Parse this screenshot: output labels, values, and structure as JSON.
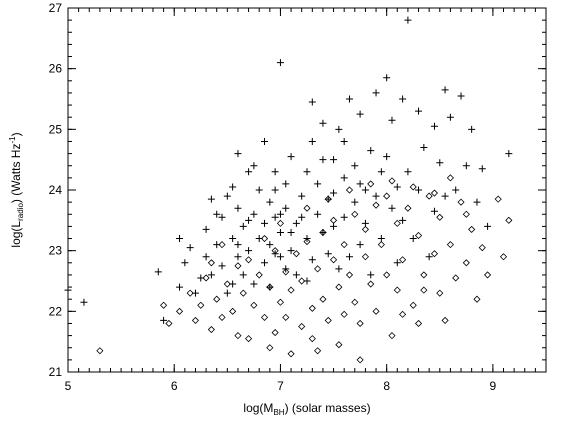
{
  "chart_data": {
    "type": "scatter",
    "title": "",
    "xlabel": {
      "prefix": "log(M",
      "sub": "BH",
      "suffix": ") (solar masses)"
    },
    "ylabel": {
      "prefix": "log(L",
      "sub": "radio",
      "mid": ") (Watts Hz",
      "sup": "-1",
      "suffix": ")"
    },
    "xlim": [
      5,
      9.5
    ],
    "ylim": [
      21,
      27
    ],
    "xticks": [
      "5",
      "6",
      "7",
      "8",
      "9"
    ],
    "yticks": [
      "21",
      "22",
      "23",
      "24",
      "25",
      "26",
      "27"
    ],
    "grid": false,
    "legend": "none",
    "series": [
      {
        "marker": "plus",
        "points": [
          [
            5.0,
            22.35
          ],
          [
            5.15,
            22.15
          ],
          [
            5.85,
            22.65
          ],
          [
            5.9,
            21.85
          ],
          [
            6.05,
            22.4
          ],
          [
            6.1,
            22.8
          ],
          [
            6.15,
            23.05
          ],
          [
            6.05,
            23.2
          ],
          [
            6.2,
            22.3
          ],
          [
            6.25,
            22.55
          ],
          [
            6.3,
            23.35
          ],
          [
            6.3,
            22.9
          ],
          [
            6.35,
            22.6
          ],
          [
            6.35,
            23.85
          ],
          [
            6.4,
            23.1
          ],
          [
            6.45,
            22.75
          ],
          [
            6.45,
            23.55
          ],
          [
            6.5,
            22.3
          ],
          [
            6.55,
            23.2
          ],
          [
            6.55,
            24.05
          ],
          [
            6.6,
            22.9
          ],
          [
            6.6,
            23.7
          ],
          [
            6.6,
            24.6
          ],
          [
            6.65,
            22.6
          ],
          [
            6.65,
            23.4
          ],
          [
            6.7,
            23.0
          ],
          [
            6.7,
            24.3
          ],
          [
            6.75,
            23.6
          ],
          [
            6.75,
            22.45
          ],
          [
            6.8,
            23.2
          ],
          [
            6.8,
            24.0
          ],
          [
            6.85,
            22.8
          ],
          [
            6.85,
            23.45
          ],
          [
            6.85,
            24.8
          ],
          [
            6.9,
            23.1
          ],
          [
            6.9,
            23.8
          ],
          [
            6.9,
            22.4
          ],
          [
            6.95,
            23.55
          ],
          [
            6.95,
            24.3
          ],
          [
            7.0,
            22.9
          ],
          [
            7.0,
            23.3
          ],
          [
            7.0,
            26.1
          ],
          [
            7.05,
            23.7
          ],
          [
            7.05,
            24.1
          ],
          [
            7.1,
            23.0
          ],
          [
            7.1,
            24.55
          ],
          [
            7.15,
            23.45
          ],
          [
            7.15,
            22.6
          ],
          [
            7.2,
            23.9
          ],
          [
            7.25,
            23.2
          ],
          [
            7.25,
            24.3
          ],
          [
            7.3,
            22.85
          ],
          [
            7.3,
            25.45
          ],
          [
            7.35,
            23.6
          ],
          [
            7.35,
            24.1
          ],
          [
            7.4,
            23.3
          ],
          [
            7.4,
            25.1
          ],
          [
            7.45,
            22.95
          ],
          [
            7.45,
            23.85
          ],
          [
            7.5,
            24.5
          ],
          [
            7.5,
            23.4
          ],
          [
            7.55,
            22.7
          ],
          [
            7.55,
            25.0
          ],
          [
            7.6,
            24.2
          ],
          [
            7.6,
            23.55
          ],
          [
            7.65,
            25.5
          ],
          [
            7.65,
            22.9
          ],
          [
            7.7,
            23.8
          ],
          [
            7.7,
            24.4
          ],
          [
            7.75,
            23.1
          ],
          [
            7.75,
            25.25
          ],
          [
            7.8,
            24.0
          ],
          [
            7.8,
            23.45
          ],
          [
            7.85,
            24.65
          ],
          [
            7.85,
            22.6
          ],
          [
            7.9,
            25.6
          ],
          [
            7.9,
            23.9
          ],
          [
            7.95,
            24.3
          ],
          [
            7.95,
            23.2
          ],
          [
            8.0,
            25.85
          ],
          [
            8.0,
            24.55
          ],
          [
            8.05,
            23.7
          ],
          [
            8.05,
            25.15
          ],
          [
            8.1,
            24.05
          ],
          [
            8.1,
            22.8
          ],
          [
            8.15,
            25.5
          ],
          [
            8.15,
            23.5
          ],
          [
            8.2,
            26.8
          ],
          [
            8.2,
            24.3
          ],
          [
            8.25,
            23.2
          ],
          [
            8.3,
            25.3
          ],
          [
            8.3,
            24.0
          ],
          [
            8.35,
            24.7
          ],
          [
            8.4,
            22.9
          ],
          [
            8.45,
            25.05
          ],
          [
            8.45,
            23.65
          ],
          [
            8.5,
            24.45
          ],
          [
            8.55,
            25.65
          ],
          [
            8.55,
            23.9
          ],
          [
            8.6,
            25.2
          ],
          [
            8.65,
            24.0
          ],
          [
            8.7,
            25.55
          ],
          [
            8.75,
            24.4
          ],
          [
            8.8,
            25.0
          ],
          [
            8.85,
            23.8
          ],
          [
            8.9,
            24.35
          ],
          [
            8.95,
            23.4
          ],
          [
            9.15,
            24.6
          ],
          [
            7.0,
            23.6
          ],
          [
            6.95,
            24.0
          ],
          [
            7.2,
            23.55
          ],
          [
            7.5,
            23.95
          ],
          [
            7.75,
            24.1
          ],
          [
            6.5,
            23.9
          ],
          [
            6.75,
            24.4
          ],
          [
            7.3,
            24.8
          ],
          [
            7.6,
            24.8
          ],
          [
            7.4,
            24.5
          ],
          [
            7.1,
            23.3
          ],
          [
            6.4,
            23.6
          ],
          [
            6.7,
            23.5
          ],
          [
            6.95,
            22.95
          ],
          [
            7.05,
            22.7
          ],
          [
            7.25,
            22.5
          ],
          [
            6.55,
            22.45
          ],
          [
            6.6,
            23.1
          ]
        ]
      },
      {
        "marker": "diamond",
        "points": [
          [
            5.3,
            21.35
          ],
          [
            5.9,
            22.1
          ],
          [
            5.95,
            21.8
          ],
          [
            6.05,
            22.0
          ],
          [
            6.15,
            22.3
          ],
          [
            6.2,
            21.85
          ],
          [
            6.25,
            22.1
          ],
          [
            6.3,
            22.55
          ],
          [
            6.35,
            21.7
          ],
          [
            6.4,
            22.2
          ],
          [
            6.45,
            21.9
          ],
          [
            6.5,
            22.45
          ],
          [
            6.55,
            22.0
          ],
          [
            6.6,
            21.6
          ],
          [
            6.65,
            22.3
          ],
          [
            6.7,
            22.85
          ],
          [
            6.7,
            21.55
          ],
          [
            6.75,
            22.1
          ],
          [
            6.8,
            22.6
          ],
          [
            6.85,
            21.9
          ],
          [
            6.9,
            22.4
          ],
          [
            6.95,
            21.65
          ],
          [
            6.95,
            23.0
          ],
          [
            7.0,
            22.15
          ],
          [
            7.05,
            22.65
          ],
          [
            7.05,
            21.9
          ],
          [
            7.1,
            21.3
          ],
          [
            7.1,
            22.35
          ],
          [
            7.15,
            22.95
          ],
          [
            7.2,
            21.75
          ],
          [
            7.2,
            22.5
          ],
          [
            7.25,
            23.15
          ],
          [
            7.3,
            22.05
          ],
          [
            7.3,
            21.55
          ],
          [
            7.35,
            22.7
          ],
          [
            7.4,
            23.3
          ],
          [
            7.4,
            22.2
          ],
          [
            7.45,
            21.85
          ],
          [
            7.5,
            22.85
          ],
          [
            7.5,
            23.5
          ],
          [
            7.55,
            22.4
          ],
          [
            7.6,
            21.95
          ],
          [
            7.6,
            23.1
          ],
          [
            7.65,
            22.6
          ],
          [
            7.7,
            23.6
          ],
          [
            7.7,
            22.15
          ],
          [
            7.75,
            21.8
          ],
          [
            7.8,
            22.9
          ],
          [
            7.8,
            23.35
          ],
          [
            7.85,
            22.45
          ],
          [
            7.9,
            23.75
          ],
          [
            7.9,
            22.0
          ],
          [
            7.95,
            23.1
          ],
          [
            8.0,
            22.6
          ],
          [
            8.0,
            23.9
          ],
          [
            8.05,
            21.6
          ],
          [
            8.1,
            22.35
          ],
          [
            8.1,
            23.45
          ],
          [
            8.15,
            22.85
          ],
          [
            8.2,
            23.7
          ],
          [
            8.25,
            22.1
          ],
          [
            8.3,
            23.25
          ],
          [
            8.3,
            21.8
          ],
          [
            8.35,
            22.6
          ],
          [
            8.4,
            23.9
          ],
          [
            8.45,
            22.95
          ],
          [
            8.5,
            22.3
          ],
          [
            8.5,
            23.55
          ],
          [
            8.55,
            21.85
          ],
          [
            8.6,
            23.1
          ],
          [
            8.65,
            22.55
          ],
          [
            8.7,
            23.8
          ],
          [
            8.75,
            22.8
          ],
          [
            8.8,
            23.35
          ],
          [
            8.85,
            22.2
          ],
          [
            8.9,
            23.05
          ],
          [
            8.95,
            22.6
          ],
          [
            9.05,
            23.85
          ],
          [
            9.1,
            22.9
          ],
          [
            9.15,
            23.5
          ],
          [
            6.35,
            22.8
          ],
          [
            6.45,
            23.1
          ],
          [
            6.6,
            22.75
          ],
          [
            6.85,
            23.2
          ],
          [
            7.0,
            23.45
          ],
          [
            7.25,
            23.7
          ],
          [
            7.45,
            23.85
          ],
          [
            7.65,
            24.0
          ],
          [
            7.85,
            24.1
          ],
          [
            8.05,
            24.15
          ],
          [
            8.25,
            24.05
          ],
          [
            8.45,
            23.95
          ],
          [
            8.6,
            24.2
          ],
          [
            7.35,
            21.35
          ],
          [
            7.55,
            21.45
          ],
          [
            7.75,
            21.2
          ],
          [
            6.9,
            21.4
          ],
          [
            8.15,
            21.95
          ],
          [
            8.35,
            22.35
          ],
          [
            8.75,
            23.6
          ]
        ]
      }
    ]
  }
}
